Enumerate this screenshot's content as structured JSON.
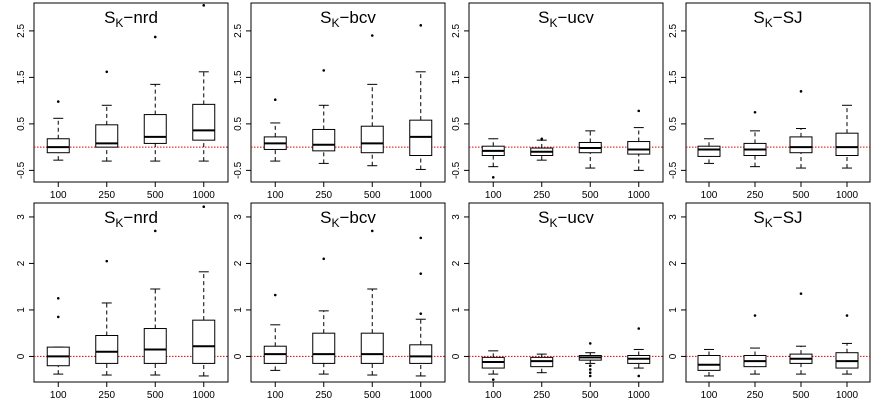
{
  "chart_data": [
    {
      "type": "box",
      "title_main": "S",
      "title_sub": "K",
      "title_suffix": "−nrd",
      "ylim": [
        -0.75,
        3.1
      ],
      "yticks": [
        -0.5,
        0.5,
        1.5,
        2.5
      ],
      "ytick_labels": [
        "-0.5",
        "0.5",
        "1.5",
        "2.5"
      ],
      "categories": [
        "100",
        "250",
        "500",
        "1000"
      ],
      "ref_line": 0,
      "boxes": [
        {
          "min": -0.28,
          "q1": -0.12,
          "median": 0.0,
          "q3": 0.18,
          "max": 0.62,
          "outliers": [
            0.98
          ]
        },
        {
          "min": -0.3,
          "q1": 0.0,
          "median": 0.08,
          "q3": 0.48,
          "max": 0.9,
          "outliers": [
            1.62
          ]
        },
        {
          "min": -0.3,
          "q1": 0.08,
          "median": 0.22,
          "q3": 0.7,
          "max": 1.35,
          "outliers": [
            2.37
          ]
        },
        {
          "min": -0.3,
          "q1": 0.15,
          "median": 0.36,
          "q3": 0.92,
          "max": 1.62,
          "outliers": [
            3.05
          ]
        }
      ]
    },
    {
      "type": "box",
      "title_main": "S",
      "title_sub": "K",
      "title_suffix": "−bcv",
      "ylim": [
        -0.75,
        3.1
      ],
      "yticks": [
        -0.5,
        0.5,
        1.5,
        2.5
      ],
      "ytick_labels": [
        "-0.5",
        "0.5",
        "1.5",
        "2.5"
      ],
      "categories": [
        "100",
        "250",
        "500",
        "1000"
      ],
      "ref_line": 0,
      "boxes": [
        {
          "min": -0.3,
          "q1": -0.05,
          "median": 0.08,
          "q3": 0.22,
          "max": 0.52,
          "outliers": [
            1.02
          ]
        },
        {
          "min": -0.35,
          "q1": -0.08,
          "median": 0.05,
          "q3": 0.38,
          "max": 0.9,
          "outliers": [
            1.65
          ]
        },
        {
          "min": -0.4,
          "q1": -0.12,
          "median": 0.08,
          "q3": 0.45,
          "max": 1.35,
          "outliers": [
            2.4
          ]
        },
        {
          "min": -0.48,
          "q1": -0.18,
          "median": 0.22,
          "q3": 0.58,
          "max": 1.62,
          "outliers": [
            2.62
          ]
        }
      ]
    },
    {
      "type": "box",
      "title_main": "S",
      "title_sub": "K",
      "title_suffix": "−ucv",
      "ylim": [
        -0.75,
        3.1
      ],
      "yticks": [
        -0.5,
        0.5,
        1.5,
        2.5
      ],
      "ytick_labels": [
        "-0.5",
        "0.5",
        "1.5",
        "2.5"
      ],
      "categories": [
        "100",
        "250",
        "500",
        "1000"
      ],
      "ref_line": 0,
      "boxes": [
        {
          "min": -0.42,
          "q1": -0.18,
          "median": -0.08,
          "q3": 0.02,
          "max": 0.18,
          "outliers": [
            -0.65
          ]
        },
        {
          "min": -0.28,
          "q1": -0.18,
          "median": -0.1,
          "q3": -0.02,
          "max": 0.15,
          "outliers": [
            0.18
          ]
        },
        {
          "min": -0.45,
          "q1": -0.12,
          "median": -0.02,
          "q3": 0.1,
          "max": 0.35,
          "outliers": []
        },
        {
          "min": -0.5,
          "q1": -0.15,
          "median": -0.05,
          "q3": 0.12,
          "max": 0.42,
          "outliers": [
            0.78
          ]
        }
      ]
    },
    {
      "type": "box",
      "title_main": "S",
      "title_sub": "K",
      "title_suffix": "−SJ",
      "ylim": [
        -0.75,
        3.1
      ],
      "yticks": [
        -0.5,
        0.5,
        1.5,
        2.5
      ],
      "ytick_labels": [
        "-0.5",
        "0.5",
        "1.5",
        "2.5"
      ],
      "categories": [
        "100",
        "250",
        "500",
        "1000"
      ],
      "ref_line": 0,
      "boxes": [
        {
          "min": -0.35,
          "q1": -0.2,
          "median": -0.05,
          "q3": 0.02,
          "max": 0.18,
          "outliers": []
        },
        {
          "min": -0.42,
          "q1": -0.18,
          "median": -0.05,
          "q3": 0.08,
          "max": 0.35,
          "outliers": [
            0.75
          ]
        },
        {
          "min": -0.45,
          "q1": -0.12,
          "median": 0.0,
          "q3": 0.22,
          "max": 0.4,
          "outliers": [
            1.2
          ]
        },
        {
          "min": -0.45,
          "q1": -0.18,
          "median": 0.0,
          "q3": 0.3,
          "max": 0.9,
          "outliers": []
        }
      ]
    },
    {
      "type": "box",
      "title_main": "S",
      "title_sub": "K",
      "title_suffix": "−nrd",
      "ylim": [
        -0.55,
        3.3
      ],
      "yticks": [
        0,
        1,
        2,
        3
      ],
      "ytick_labels": [
        "0",
        "1",
        "2",
        "3"
      ],
      "categories": [
        "100",
        "250",
        "500",
        "1000"
      ],
      "ref_line": 0,
      "boxes": [
        {
          "min": -0.38,
          "q1": -0.2,
          "median": 0.0,
          "q3": 0.2,
          "max": 0.2,
          "outliers": [
            0.85,
            1.25
          ]
        },
        {
          "min": -0.4,
          "q1": -0.15,
          "median": 0.1,
          "q3": 0.45,
          "max": 1.15,
          "outliers": [
            2.05
          ]
        },
        {
          "min": -0.4,
          "q1": -0.15,
          "median": 0.15,
          "q3": 0.6,
          "max": 1.45,
          "outliers": [
            2.7
          ]
        },
        {
          "min": -0.42,
          "q1": -0.15,
          "median": 0.22,
          "q3": 0.78,
          "max": 1.82,
          "outliers": [
            3.22
          ]
        }
      ]
    },
    {
      "type": "box",
      "title_main": "S",
      "title_sub": "K",
      "title_suffix": "−bcv",
      "ylim": [
        -0.55,
        3.3
      ],
      "yticks": [
        0,
        1,
        2,
        3
      ],
      "ytick_labels": [
        "0",
        "1",
        "2",
        "3"
      ],
      "categories": [
        "100",
        "250",
        "500",
        "1000"
      ],
      "ref_line": 0,
      "boxes": [
        {
          "min": -0.3,
          "q1": -0.15,
          "median": 0.05,
          "q3": 0.22,
          "max": 0.68,
          "outliers": [
            1.32
          ]
        },
        {
          "min": -0.38,
          "q1": -0.15,
          "median": 0.05,
          "q3": 0.5,
          "max": 0.98,
          "outliers": [
            2.1
          ]
        },
        {
          "min": -0.4,
          "q1": -0.15,
          "median": 0.05,
          "q3": 0.5,
          "max": 1.45,
          "outliers": [
            2.7
          ]
        },
        {
          "min": -0.42,
          "q1": -0.15,
          "median": 0.0,
          "q3": 0.25,
          "max": 0.8,
          "outliers": [
            0.92,
            1.78,
            2.55
          ]
        }
      ]
    },
    {
      "type": "box",
      "title_main": "S",
      "title_sub": "K",
      "title_suffix": "−ucv",
      "ylim": [
        -0.55,
        3.3
      ],
      "yticks": [
        0,
        1,
        2,
        3
      ],
      "ytick_labels": [
        "0",
        "1",
        "2",
        "3"
      ],
      "categories": [
        "100",
        "250",
        "500",
        "1000"
      ],
      "ref_line": 0,
      "boxes": [
        {
          "min": -0.38,
          "q1": -0.25,
          "median": -0.12,
          "q3": -0.02,
          "max": 0.12,
          "outliers": [
            -0.5
          ]
        },
        {
          "min": -0.35,
          "q1": -0.22,
          "median": -0.1,
          "q3": -0.02,
          "max": 0.05,
          "outliers": []
        },
        {
          "min": -0.15,
          "q1": -0.08,
          "median": -0.02,
          "q3": 0.02,
          "max": 0.08,
          "outliers": [
            -0.2,
            -0.28,
            -0.35,
            -0.42,
            0.28
          ]
        },
        {
          "min": -0.25,
          "q1": -0.15,
          "median": -0.05,
          "q3": 0.02,
          "max": 0.15,
          "outliers": [
            -0.42,
            0.6
          ]
        }
      ]
    },
    {
      "type": "box",
      "title_main": "S",
      "title_sub": "K",
      "title_suffix": "−SJ",
      "ylim": [
        -0.55,
        3.3
      ],
      "yticks": [
        0,
        1,
        2,
        3
      ],
      "ytick_labels": [
        "0",
        "1",
        "2",
        "3"
      ],
      "categories": [
        "100",
        "250",
        "500",
        "1000"
      ],
      "ref_line": 0,
      "boxes": [
        {
          "min": -0.42,
          "q1": -0.3,
          "median": -0.18,
          "q3": 0.02,
          "max": 0.15,
          "outliers": []
        },
        {
          "min": -0.38,
          "q1": -0.22,
          "median": -0.1,
          "q3": 0.02,
          "max": 0.18,
          "outliers": [
            0.88
          ]
        },
        {
          "min": -0.38,
          "q1": -0.15,
          "median": -0.05,
          "q3": 0.05,
          "max": 0.22,
          "outliers": [
            1.35
          ]
        },
        {
          "min": -0.38,
          "q1": -0.25,
          "median": -0.1,
          "q3": 0.08,
          "max": 0.28,
          "outliers": [
            0.88
          ]
        }
      ]
    }
  ]
}
